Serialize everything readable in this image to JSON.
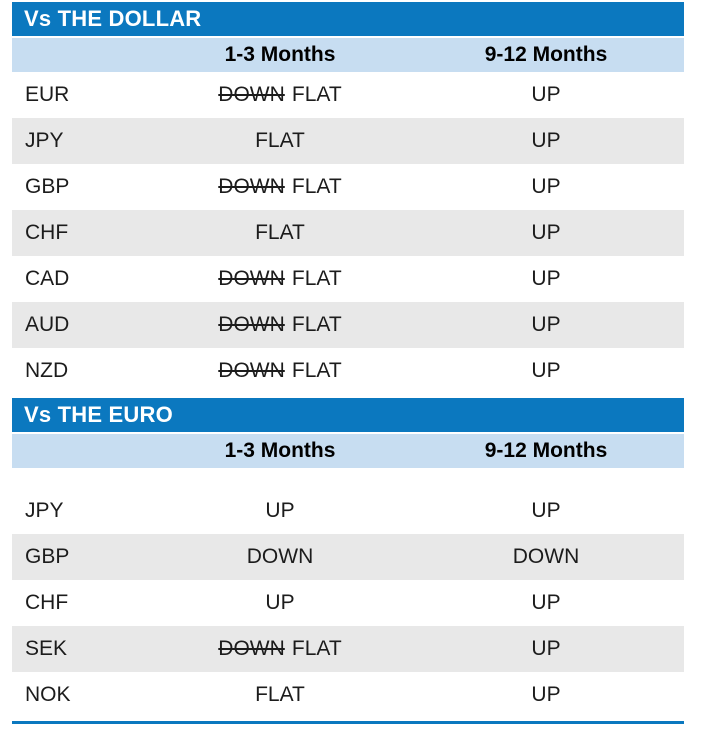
{
  "chart_data": [
    {
      "type": "table",
      "title": "Vs THE DOLLAR",
      "columns": [
        "1-3 Months",
        "9-12 Months"
      ],
      "rows": [
        {
          "currency": "EUR",
          "m1_3": {
            "strike": "DOWN",
            "value": "FLAT"
          },
          "m9_12": {
            "value": "UP"
          }
        },
        {
          "currency": "JPY",
          "m1_3": {
            "value": "FLAT"
          },
          "m9_12": {
            "value": "UP"
          }
        },
        {
          "currency": "GBP",
          "m1_3": {
            "strike": "DOWN",
            "value": "FLAT"
          },
          "m9_12": {
            "value": "UP"
          }
        },
        {
          "currency": "CHF",
          "m1_3": {
            "value": "FLAT"
          },
          "m9_12": {
            "value": "UP"
          }
        },
        {
          "currency": "CAD",
          "m1_3": {
            "strike": "DOWN",
            "value": "FLAT"
          },
          "m9_12": {
            "value": "UP"
          }
        },
        {
          "currency": "AUD",
          "m1_3": {
            "strike": "DOWN",
            "value": "FLAT"
          },
          "m9_12": {
            "value": "UP"
          }
        },
        {
          "currency": "NZD",
          "m1_3": {
            "strike": "DOWN",
            "value": "FLAT"
          },
          "m9_12": {
            "value": "UP"
          }
        }
      ]
    },
    {
      "type": "table",
      "title": "Vs THE EURO",
      "columns": [
        "1-3 Months",
        "9-12 Months"
      ],
      "rows": [
        {
          "currency": "JPY",
          "m1_3": {
            "value": "UP"
          },
          "m9_12": {
            "value": "UP"
          }
        },
        {
          "currency": "GBP",
          "m1_3": {
            "value": "DOWN"
          },
          "m9_12": {
            "value": "DOWN"
          }
        },
        {
          "currency": "CHF",
          "m1_3": {
            "value": "UP"
          },
          "m9_12": {
            "value": "UP"
          }
        },
        {
          "currency": "SEK",
          "m1_3": {
            "strike": "DOWN",
            "value": "FLAT"
          },
          "m9_12": {
            "value": "UP"
          }
        },
        {
          "currency": "NOK",
          "m1_3": {
            "value": "FLAT"
          },
          "m9_12": {
            "value": "UP"
          }
        }
      ]
    }
  ],
  "colors": {
    "section_header_bg": "#0B78BF",
    "column_header_bg": "#C7DDF1",
    "row_alt_bg": "#E8E8E8",
    "text": "#1C1C1C"
  }
}
